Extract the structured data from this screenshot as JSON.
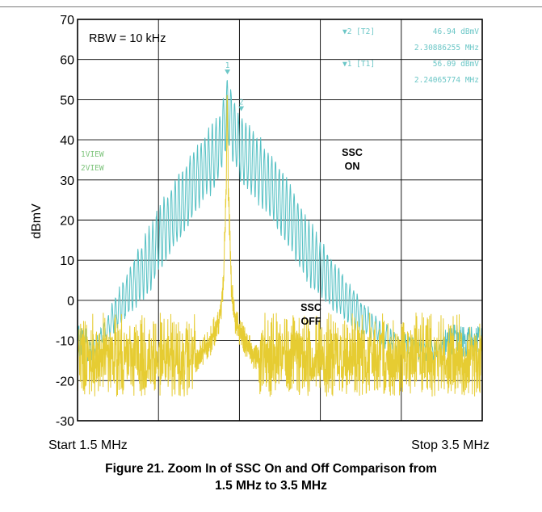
{
  "chart_data": {
    "type": "line",
    "ylabel": "dBmV",
    "ylim": [
      -30,
      70
    ],
    "yticks": [
      "70",
      "60",
      "50",
      "40",
      "30",
      "20",
      "10",
      "0",
      "-10",
      "-20",
      "-30"
    ],
    "xlim_mhz": [
      1.5,
      3.5
    ],
    "x_start_label": "Start 1.5 MHz",
    "x_stop_label": "Stop 3.5 MHz",
    "grid": true,
    "annotation_rbw": "RBW = 10 kHz",
    "annotation_ssc_on": [
      "SSC",
      "ON"
    ],
    "annotation_ssc_off": [
      "SSC",
      "OFF"
    ],
    "trace_labels": [
      "1VIEW",
      "2VIEW"
    ],
    "markers": [
      {
        "id": "2",
        "label": "▼2 [T2]",
        "level": "46.94 dBmV",
        "freq": "2.30886255 MHz",
        "x_mhz": 2.309,
        "y": 46.94
      },
      {
        "id": "1",
        "label": "▼1 [T1]",
        "level": "56.09 dBmV",
        "freq": "2.24065774 MHz",
        "x_mhz": 2.241,
        "y": 56.09
      }
    ],
    "series": [
      {
        "colour": "#56c1c4",
        "shape": "triangular envelope with dense comb ripple",
        "peak_mhz": 2.24,
        "peak": 56,
        "edge_floor": -12,
        "noise_floor": -16,
        "envelope_points": [
          [
            1.5,
            -12
          ],
          [
            1.6,
            -8
          ],
          [
            1.7,
            3
          ],
          [
            1.8,
            13
          ],
          [
            1.9,
            24
          ],
          [
            2.0,
            32
          ],
          [
            2.1,
            40
          ],
          [
            2.2,
            47
          ],
          [
            2.24,
            56
          ],
          [
            2.3,
            47
          ],
          [
            2.4,
            41
          ],
          [
            2.5,
            34
          ],
          [
            2.6,
            25
          ],
          [
            2.7,
            16
          ],
          [
            2.8,
            8
          ],
          [
            2.9,
            1
          ],
          [
            3.0,
            -5
          ],
          [
            3.1,
            -8
          ],
          [
            3.3,
            -10
          ],
          [
            3.5,
            -12
          ]
        ]
      },
      {
        "colour": "#e6cc32",
        "shape": "narrow peak over dense noise floor",
        "peak_mhz": 2.24,
        "peak": 56,
        "noise_floor": -16,
        "envelope_points": [
          [
            1.5,
            -16
          ],
          [
            2.05,
            -15
          ],
          [
            2.15,
            -9
          ],
          [
            2.2,
            -3
          ],
          [
            2.22,
            5
          ],
          [
            2.235,
            30
          ],
          [
            2.24,
            56
          ],
          [
            2.245,
            30
          ],
          [
            2.26,
            5
          ],
          [
            2.28,
            -3
          ],
          [
            2.33,
            -9
          ],
          [
            2.43,
            -15
          ],
          [
            3.5,
            -16
          ]
        ]
      }
    ]
  },
  "caption": {
    "line1": "Figure 21. Zoom In of SSC On and Off Comparison from",
    "line2": "1.5 MHz to 3.5 MHz"
  }
}
